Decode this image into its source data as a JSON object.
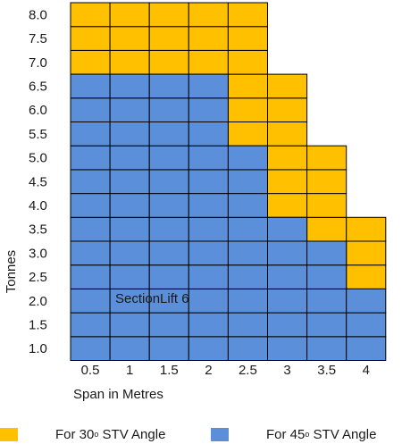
{
  "chart_data": {
    "type": "heatmap",
    "xlabel": "Span in Metres",
    "ylabel": "Tonnes",
    "x_ticks": [
      "0.5",
      "1",
      "1.5",
      "2",
      "2.5",
      "3",
      "3.5",
      "4"
    ],
    "y_ticks": [
      "1.0",
      "1.5",
      "2.0",
      "2.5",
      "3.0",
      "3.5",
      "4.0",
      "4.5",
      "5.0",
      "5.5",
      "6.0",
      "6.5",
      "7.0",
      "7.5",
      "8.0"
    ],
    "annotation": "SectionLift 6",
    "series": [
      {
        "name": "For 30° STV Angle",
        "color": "#FFC000",
        "cells": [
          [
            "0.5",
            "7.0"
          ],
          [
            "0.5",
            "7.5"
          ],
          [
            "0.5",
            "8.0"
          ],
          [
            "1",
            "7.0"
          ],
          [
            "1",
            "7.5"
          ],
          [
            "1",
            "8.0"
          ],
          [
            "1.5",
            "7.0"
          ],
          [
            "1.5",
            "7.5"
          ],
          [
            "1.5",
            "8.0"
          ],
          [
            "2",
            "7.0"
          ],
          [
            "2",
            "7.5"
          ],
          [
            "2",
            "8.0"
          ],
          [
            "2.5",
            "5.5"
          ],
          [
            "2.5",
            "6.0"
          ],
          [
            "2.5",
            "6.5"
          ],
          [
            "2.5",
            "7.0"
          ],
          [
            "2.5",
            "7.5"
          ],
          [
            "2.5",
            "8.0"
          ],
          [
            "3",
            "4.0"
          ],
          [
            "3",
            "4.5"
          ],
          [
            "3",
            "5.0"
          ],
          [
            "3",
            "5.5"
          ],
          [
            "3",
            "6.0"
          ],
          [
            "3",
            "6.5"
          ],
          [
            "3.5",
            "3.5"
          ],
          [
            "3.5",
            "4.0"
          ],
          [
            "3.5",
            "4.5"
          ],
          [
            "3.5",
            "5.0"
          ],
          [
            "4",
            "2.5"
          ],
          [
            "4",
            "3.0"
          ],
          [
            "4",
            "3.5"
          ]
        ]
      },
      {
        "name": "For 45° STV Angle",
        "color": "#5B8FD9",
        "cells": [
          [
            "0.5",
            "1.0"
          ],
          [
            "0.5",
            "1.5"
          ],
          [
            "0.5",
            "2.0"
          ],
          [
            "0.5",
            "2.5"
          ],
          [
            "0.5",
            "3.0"
          ],
          [
            "0.5",
            "3.5"
          ],
          [
            "0.5",
            "4.0"
          ],
          [
            "0.5",
            "4.5"
          ],
          [
            "0.5",
            "5.0"
          ],
          [
            "0.5",
            "5.5"
          ],
          [
            "0.5",
            "6.0"
          ],
          [
            "0.5",
            "6.5"
          ],
          [
            "1",
            "1.0"
          ],
          [
            "1",
            "1.5"
          ],
          [
            "1",
            "2.0"
          ],
          [
            "1",
            "2.5"
          ],
          [
            "1",
            "3.0"
          ],
          [
            "1",
            "3.5"
          ],
          [
            "1",
            "4.0"
          ],
          [
            "1",
            "4.5"
          ],
          [
            "1",
            "5.0"
          ],
          [
            "1",
            "5.5"
          ],
          [
            "1",
            "6.0"
          ],
          [
            "1",
            "6.5"
          ],
          [
            "1.5",
            "1.0"
          ],
          [
            "1.5",
            "1.5"
          ],
          [
            "1.5",
            "2.0"
          ],
          [
            "1.5",
            "2.5"
          ],
          [
            "1.5",
            "3.0"
          ],
          [
            "1.5",
            "3.5"
          ],
          [
            "1.5",
            "4.0"
          ],
          [
            "1.5",
            "4.5"
          ],
          [
            "1.5",
            "5.0"
          ],
          [
            "1.5",
            "5.5"
          ],
          [
            "1.5",
            "6.0"
          ],
          [
            "1.5",
            "6.5"
          ],
          [
            "2",
            "1.0"
          ],
          [
            "2",
            "1.5"
          ],
          [
            "2",
            "2.0"
          ],
          [
            "2",
            "2.5"
          ],
          [
            "2",
            "3.0"
          ],
          [
            "2",
            "3.5"
          ],
          [
            "2",
            "4.0"
          ],
          [
            "2",
            "4.5"
          ],
          [
            "2",
            "5.0"
          ],
          [
            "2",
            "5.5"
          ],
          [
            "2",
            "6.0"
          ],
          [
            "2",
            "6.5"
          ],
          [
            "2.5",
            "1.0"
          ],
          [
            "2.5",
            "1.5"
          ],
          [
            "2.5",
            "2.0"
          ],
          [
            "2.5",
            "2.5"
          ],
          [
            "2.5",
            "3.0"
          ],
          [
            "2.5",
            "3.5"
          ],
          [
            "2.5",
            "4.0"
          ],
          [
            "2.5",
            "4.5"
          ],
          [
            "2.5",
            "5.0"
          ],
          [
            "3",
            "1.0"
          ],
          [
            "3",
            "1.5"
          ],
          [
            "3",
            "2.0"
          ],
          [
            "3",
            "2.5"
          ],
          [
            "3",
            "3.0"
          ],
          [
            "3",
            "3.5"
          ],
          [
            "3.5",
            "1.0"
          ],
          [
            "3.5",
            "1.5"
          ],
          [
            "3.5",
            "2.0"
          ],
          [
            "3.5",
            "2.5"
          ],
          [
            "3.5",
            "3.0"
          ],
          [
            "4",
            "1.0"
          ],
          [
            "4",
            "1.5"
          ],
          [
            "4",
            "2.0"
          ]
        ]
      }
    ],
    "legend": {
      "position": "bottom",
      "items": [
        {
          "prefix": "For 30",
          "degree": "o",
          "suffix": " STV Angle",
          "color": "#FFC000"
        },
        {
          "prefix": "For 45",
          "degree": "o",
          "suffix": " STV Angle",
          "color": "#5B8FD9"
        }
      ]
    }
  }
}
